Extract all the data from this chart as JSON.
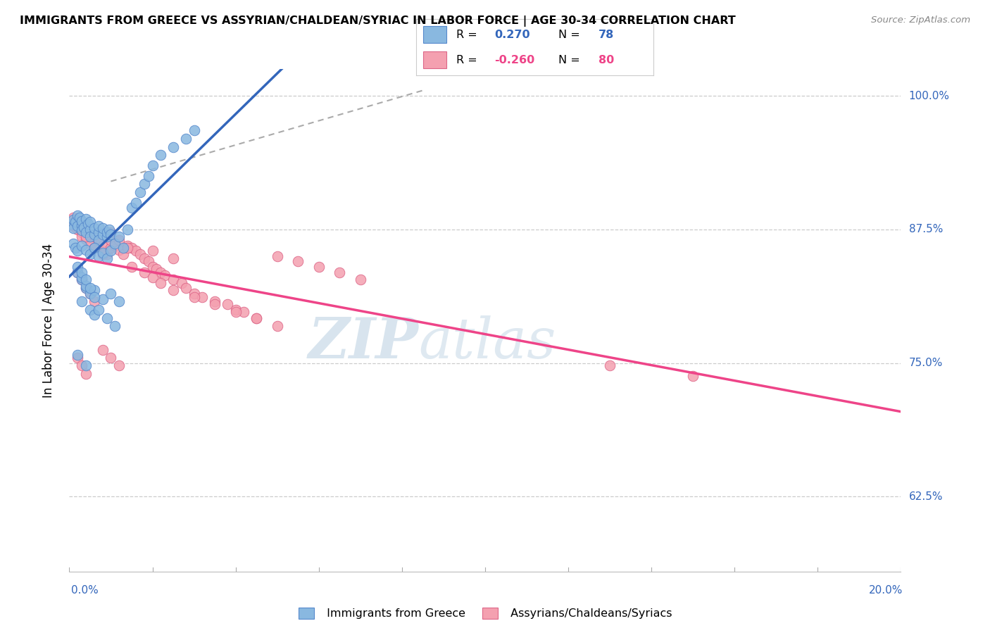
{
  "title": "IMMIGRANTS FROM GREECE VS ASSYRIAN/CHALDEAN/SYRIAC IN LABOR FORCE | AGE 30-34 CORRELATION CHART",
  "source": "Source: ZipAtlas.com",
  "ylabel": "In Labor Force | Age 30-34",
  "ylabel_values": [
    0.625,
    0.75,
    0.875,
    1.0
  ],
  "xlim": [
    0.0,
    0.2
  ],
  "ylim": [
    0.555,
    1.025
  ],
  "R_greece": 0.27,
  "N_greece": 78,
  "R_assyrian": -0.26,
  "N_assyrian": 80,
  "color_greece": "#89B8E0",
  "color_assyrian": "#F4A0B0",
  "color_greece_line": "#3366BB",
  "color_assyrian_line": "#EE4488",
  "color_greece_edge": "#5588CC",
  "color_assyrian_edge": "#DD6688",
  "greece_scatter_x": [
    0.0005,
    0.001,
    0.001,
    0.0015,
    0.002,
    0.002,
    0.0025,
    0.003,
    0.003,
    0.003,
    0.0035,
    0.004,
    0.004,
    0.0045,
    0.005,
    0.005,
    0.005,
    0.006,
    0.006,
    0.007,
    0.007,
    0.007,
    0.008,
    0.008,
    0.009,
    0.009,
    0.0095,
    0.01,
    0.001,
    0.0015,
    0.002,
    0.003,
    0.004,
    0.005,
    0.006,
    0.007,
    0.008,
    0.009,
    0.01,
    0.011,
    0.012,
    0.013,
    0.014,
    0.015,
    0.016,
    0.017,
    0.018,
    0.019,
    0.02,
    0.022,
    0.025,
    0.028,
    0.03,
    0.002,
    0.003,
    0.004,
    0.005,
    0.003,
    0.005,
    0.006,
    0.002,
    0.004,
    0.003,
    0.004,
    0.006,
    0.008,
    0.01,
    0.012,
    0.002,
    0.003,
    0.004,
    0.005,
    0.006,
    0.007,
    0.009,
    0.011
  ],
  "greece_scatter_y": [
    0.88,
    0.884,
    0.876,
    0.882,
    0.888,
    0.878,
    0.886,
    0.879,
    0.883,
    0.874,
    0.877,
    0.885,
    0.872,
    0.88,
    0.875,
    0.868,
    0.882,
    0.87,
    0.876,
    0.872,
    0.878,
    0.865,
    0.87,
    0.876,
    0.868,
    0.872,
    0.875,
    0.87,
    0.862,
    0.858,
    0.855,
    0.86,
    0.856,
    0.852,
    0.858,
    0.85,
    0.853,
    0.848,
    0.855,
    0.862,
    0.868,
    0.858,
    0.875,
    0.895,
    0.9,
    0.91,
    0.918,
    0.925,
    0.935,
    0.945,
    0.952,
    0.96,
    0.968,
    0.835,
    0.828,
    0.82,
    0.815,
    0.808,
    0.8,
    0.795,
    0.758,
    0.748,
    0.83,
    0.822,
    0.818,
    0.81,
    0.815,
    0.808,
    0.84,
    0.835,
    0.828,
    0.82,
    0.812,
    0.8,
    0.792,
    0.785
  ],
  "assyrian_scatter_x": [
    0.0005,
    0.001,
    0.001,
    0.0015,
    0.002,
    0.002,
    0.0025,
    0.003,
    0.003,
    0.003,
    0.004,
    0.004,
    0.005,
    0.005,
    0.006,
    0.006,
    0.007,
    0.008,
    0.008,
    0.009,
    0.01,
    0.01,
    0.011,
    0.012,
    0.013,
    0.014,
    0.015,
    0.016,
    0.017,
    0.018,
    0.019,
    0.02,
    0.021,
    0.022,
    0.023,
    0.025,
    0.027,
    0.028,
    0.03,
    0.032,
    0.035,
    0.038,
    0.04,
    0.042,
    0.045,
    0.05,
    0.055,
    0.06,
    0.065,
    0.07,
    0.002,
    0.003,
    0.004,
    0.005,
    0.006,
    0.004,
    0.006,
    0.008,
    0.01,
    0.012,
    0.014,
    0.02,
    0.025,
    0.015,
    0.018,
    0.02,
    0.022,
    0.025,
    0.03,
    0.035,
    0.04,
    0.045,
    0.05,
    0.002,
    0.003,
    0.004,
    0.008,
    0.01,
    0.012,
    0.13,
    0.15
  ],
  "assyrian_scatter_y": [
    0.882,
    0.886,
    0.878,
    0.884,
    0.88,
    0.875,
    0.878,
    0.872,
    0.876,
    0.868,
    0.874,
    0.866,
    0.87,
    0.862,
    0.868,
    0.858,
    0.863,
    0.855,
    0.86,
    0.852,
    0.858,
    0.865,
    0.86,
    0.856,
    0.852,
    0.86,
    0.858,
    0.855,
    0.852,
    0.848,
    0.845,
    0.84,
    0.838,
    0.835,
    0.832,
    0.828,
    0.825,
    0.82,
    0.815,
    0.812,
    0.808,
    0.805,
    0.8,
    0.798,
    0.792,
    0.85,
    0.845,
    0.84,
    0.835,
    0.828,
    0.835,
    0.828,
    0.82,
    0.815,
    0.808,
    0.868,
    0.858,
    0.852,
    0.872,
    0.865,
    0.858,
    0.855,
    0.848,
    0.84,
    0.835,
    0.83,
    0.825,
    0.818,
    0.812,
    0.805,
    0.798,
    0.792,
    0.785,
    0.755,
    0.748,
    0.74,
    0.762,
    0.755,
    0.748,
    0.748,
    0.738
  ]
}
